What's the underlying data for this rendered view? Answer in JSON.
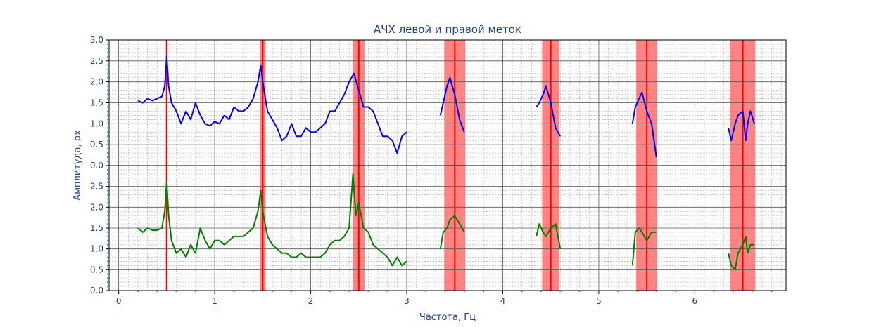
{
  "chart_data": {
    "type": "line",
    "title": "АЧХ левой и правой меток",
    "xlabel": "Частота, Гц",
    "ylabel": "Амплитуда, px",
    "xlim": [
      -0.1,
      6.95
    ],
    "x_ticks": [
      0,
      1,
      2,
      3,
      4,
      5,
      6
    ],
    "upper_panel_ylim": [
      0,
      3.0
    ],
    "upper_y_ticks": [
      "0.0",
      "0.5",
      "1.0",
      "1.5",
      "2.0",
      "2.5",
      "3.0"
    ],
    "lower_panel_ylim": [
      0,
      3.0
    ],
    "lower_y_ticks": [
      "0.0",
      "0.5",
      "1.0",
      "1.5",
      "2.0",
      "2.5"
    ],
    "grid": true,
    "markers": [
      0.5,
      1.5,
      2.5,
      3.5,
      4.5,
      5.5,
      6.5
    ],
    "bands": [
      [
        0.49,
        0.51
      ],
      [
        1.47,
        1.53
      ],
      [
        2.44,
        2.56
      ],
      [
        3.39,
        3.61
      ],
      [
        4.41,
        4.59
      ],
      [
        5.39,
        5.61
      ],
      [
        6.37,
        6.63
      ]
    ],
    "series": [
      {
        "panel": "upper",
        "color": "#0000ff",
        "segments": [
          [
            [
              0.2,
              1.55
            ],
            [
              0.25,
              1.5
            ],
            [
              0.3,
              1.6
            ],
            [
              0.35,
              1.55
            ],
            [
              0.4,
              1.6
            ],
            [
              0.45,
              1.65
            ],
            [
              0.48,
              1.9
            ],
            [
              0.5,
              2.6
            ],
            [
              0.52,
              1.9
            ],
            [
              0.55,
              1.5
            ],
            [
              0.6,
              1.3
            ],
            [
              0.65,
              1.0
            ],
            [
              0.7,
              1.3
            ],
            [
              0.75,
              1.1
            ],
            [
              0.8,
              1.5
            ],
            [
              0.85,
              1.2
            ],
            [
              0.9,
              1.0
            ],
            [
              0.95,
              0.95
            ],
            [
              1.0,
              1.05
            ],
            [
              1.05,
              1.0
            ],
            [
              1.1,
              1.2
            ],
            [
              1.15,
              1.1
            ],
            [
              1.2,
              1.4
            ],
            [
              1.25,
              1.3
            ],
            [
              1.3,
              1.3
            ],
            [
              1.35,
              1.4
            ],
            [
              1.4,
              1.6
            ],
            [
              1.45,
              2.0
            ],
            [
              1.48,
              2.4
            ],
            [
              1.5,
              2.0
            ],
            [
              1.55,
              1.3
            ],
            [
              1.6,
              1.1
            ],
            [
              1.65,
              0.9
            ],
            [
              1.7,
              0.6
            ],
            [
              1.75,
              0.7
            ],
            [
              1.8,
              1.0
            ],
            [
              1.85,
              0.7
            ],
            [
              1.9,
              0.7
            ],
            [
              1.95,
              0.9
            ],
            [
              2.0,
              0.8
            ],
            [
              2.05,
              0.8
            ],
            [
              2.1,
              0.9
            ],
            [
              2.15,
              1.0
            ],
            [
              2.2,
              1.3
            ],
            [
              2.25,
              1.3
            ],
            [
              2.3,
              1.5
            ],
            [
              2.35,
              1.7
            ],
            [
              2.4,
              2.0
            ],
            [
              2.45,
              2.2
            ],
            [
              2.5,
              1.8
            ],
            [
              2.55,
              1.4
            ],
            [
              2.6,
              1.4
            ],
            [
              2.65,
              1.3
            ],
            [
              2.7,
              1.0
            ],
            [
              2.75,
              0.7
            ],
            [
              2.8,
              0.7
            ],
            [
              2.85,
              0.6
            ],
            [
              2.9,
              0.3
            ],
            [
              2.95,
              0.7
            ],
            [
              3.0,
              0.8
            ]
          ],
          [
            [
              3.35,
              1.2
            ],
            [
              3.38,
              1.5
            ],
            [
              3.42,
              1.9
            ],
            [
              3.45,
              2.1
            ],
            [
              3.5,
              1.7
            ],
            [
              3.55,
              1.1
            ],
            [
              3.6,
              0.8
            ]
          ],
          [
            [
              4.35,
              1.4
            ],
            [
              4.38,
              1.5
            ],
            [
              4.42,
              1.7
            ],
            [
              4.45,
              1.9
            ],
            [
              4.5,
              1.5
            ],
            [
              4.55,
              0.9
            ],
            [
              4.6,
              0.7
            ]
          ],
          [
            [
              5.35,
              1.0
            ],
            [
              5.38,
              1.4
            ],
            [
              5.42,
              1.6
            ],
            [
              5.45,
              1.75
            ],
            [
              5.5,
              1.3
            ],
            [
              5.55,
              1.0
            ],
            [
              5.6,
              0.2
            ]
          ],
          [
            [
              6.35,
              0.9
            ],
            [
              6.38,
              0.6
            ],
            [
              6.42,
              1.0
            ],
            [
              6.45,
              1.2
            ],
            [
              6.5,
              1.3
            ],
            [
              6.53,
              0.6
            ],
            [
              6.55,
              1.0
            ],
            [
              6.58,
              1.3
            ],
            [
              6.62,
              1.0
            ]
          ]
        ]
      },
      {
        "panel": "lower",
        "color": "#007f00",
        "segments": [
          [
            [
              0.2,
              1.5
            ],
            [
              0.25,
              1.4
            ],
            [
              0.3,
              1.5
            ],
            [
              0.35,
              1.45
            ],
            [
              0.4,
              1.45
            ],
            [
              0.45,
              1.5
            ],
            [
              0.48,
              1.9
            ],
            [
              0.5,
              2.6
            ],
            [
              0.52,
              1.8
            ],
            [
              0.55,
              1.2
            ],
            [
              0.6,
              0.9
            ],
            [
              0.65,
              1.0
            ],
            [
              0.7,
              0.8
            ],
            [
              0.75,
              1.1
            ],
            [
              0.8,
              0.9
            ],
            [
              0.85,
              1.5
            ],
            [
              0.9,
              1.2
            ],
            [
              0.95,
              1.0
            ],
            [
              1.0,
              1.2
            ],
            [
              1.05,
              1.2
            ],
            [
              1.1,
              1.1
            ],
            [
              1.15,
              1.2
            ],
            [
              1.2,
              1.3
            ],
            [
              1.25,
              1.3
            ],
            [
              1.3,
              1.3
            ],
            [
              1.35,
              1.4
            ],
            [
              1.4,
              1.5
            ],
            [
              1.45,
              1.9
            ],
            [
              1.48,
              2.4
            ],
            [
              1.5,
              1.9
            ],
            [
              1.55,
              1.3
            ],
            [
              1.6,
              1.1
            ],
            [
              1.65,
              1.0
            ],
            [
              1.7,
              0.9
            ],
            [
              1.75,
              0.9
            ],
            [
              1.8,
              0.8
            ],
            [
              1.85,
              0.8
            ],
            [
              1.9,
              0.9
            ],
            [
              1.95,
              0.8
            ],
            [
              2.0,
              0.8
            ],
            [
              2.05,
              0.8
            ],
            [
              2.1,
              0.8
            ],
            [
              2.15,
              0.9
            ],
            [
              2.2,
              1.1
            ],
            [
              2.25,
              1.2
            ],
            [
              2.3,
              1.2
            ],
            [
              2.35,
              1.3
            ],
            [
              2.4,
              1.5
            ],
            [
              2.44,
              2.8
            ],
            [
              2.47,
              1.8
            ],
            [
              2.5,
              2.1
            ],
            [
              2.55,
              1.5
            ],
            [
              2.6,
              1.4
            ],
            [
              2.65,
              1.1
            ],
            [
              2.7,
              1.0
            ],
            [
              2.75,
              0.9
            ],
            [
              2.8,
              0.8
            ],
            [
              2.85,
              0.6
            ],
            [
              2.9,
              0.8
            ],
            [
              2.95,
              0.6
            ],
            [
              3.0,
              0.7
            ]
          ],
          [
            [
              3.35,
              1.0
            ],
            [
              3.38,
              1.4
            ],
            [
              3.42,
              1.5
            ],
            [
              3.45,
              1.7
            ],
            [
              3.5,
              1.8
            ],
            [
              3.55,
              1.6
            ],
            [
              3.6,
              1.4
            ]
          ],
          [
            [
              4.35,
              1.3
            ],
            [
              4.38,
              1.6
            ],
            [
              4.42,
              1.4
            ],
            [
              4.45,
              1.3
            ],
            [
              4.5,
              1.5
            ],
            [
              4.55,
              1.6
            ],
            [
              4.6,
              1.0
            ]
          ],
          [
            [
              5.35,
              0.6
            ],
            [
              5.38,
              1.4
            ],
            [
              5.42,
              1.5
            ],
            [
              5.45,
              1.4
            ],
            [
              5.5,
              1.2
            ],
            [
              5.55,
              1.4
            ],
            [
              5.6,
              1.4
            ]
          ],
          [
            [
              6.35,
              0.9
            ],
            [
              6.38,
              0.6
            ],
            [
              6.42,
              0.5
            ],
            [
              6.45,
              0.9
            ],
            [
              6.5,
              1.1
            ],
            [
              6.53,
              1.3
            ],
            [
              6.55,
              0.9
            ],
            [
              6.58,
              1.1
            ],
            [
              6.62,
              1.1
            ]
          ]
        ]
      }
    ]
  },
  "colors": {
    "text": "#1f3f8f",
    "marker_line": "#ff0000",
    "band_fill": "#ff5c5c",
    "grid_major": "#555555",
    "grid_minor": "#bbbbbb",
    "axis_tick_dots": "#20b2aa"
  }
}
